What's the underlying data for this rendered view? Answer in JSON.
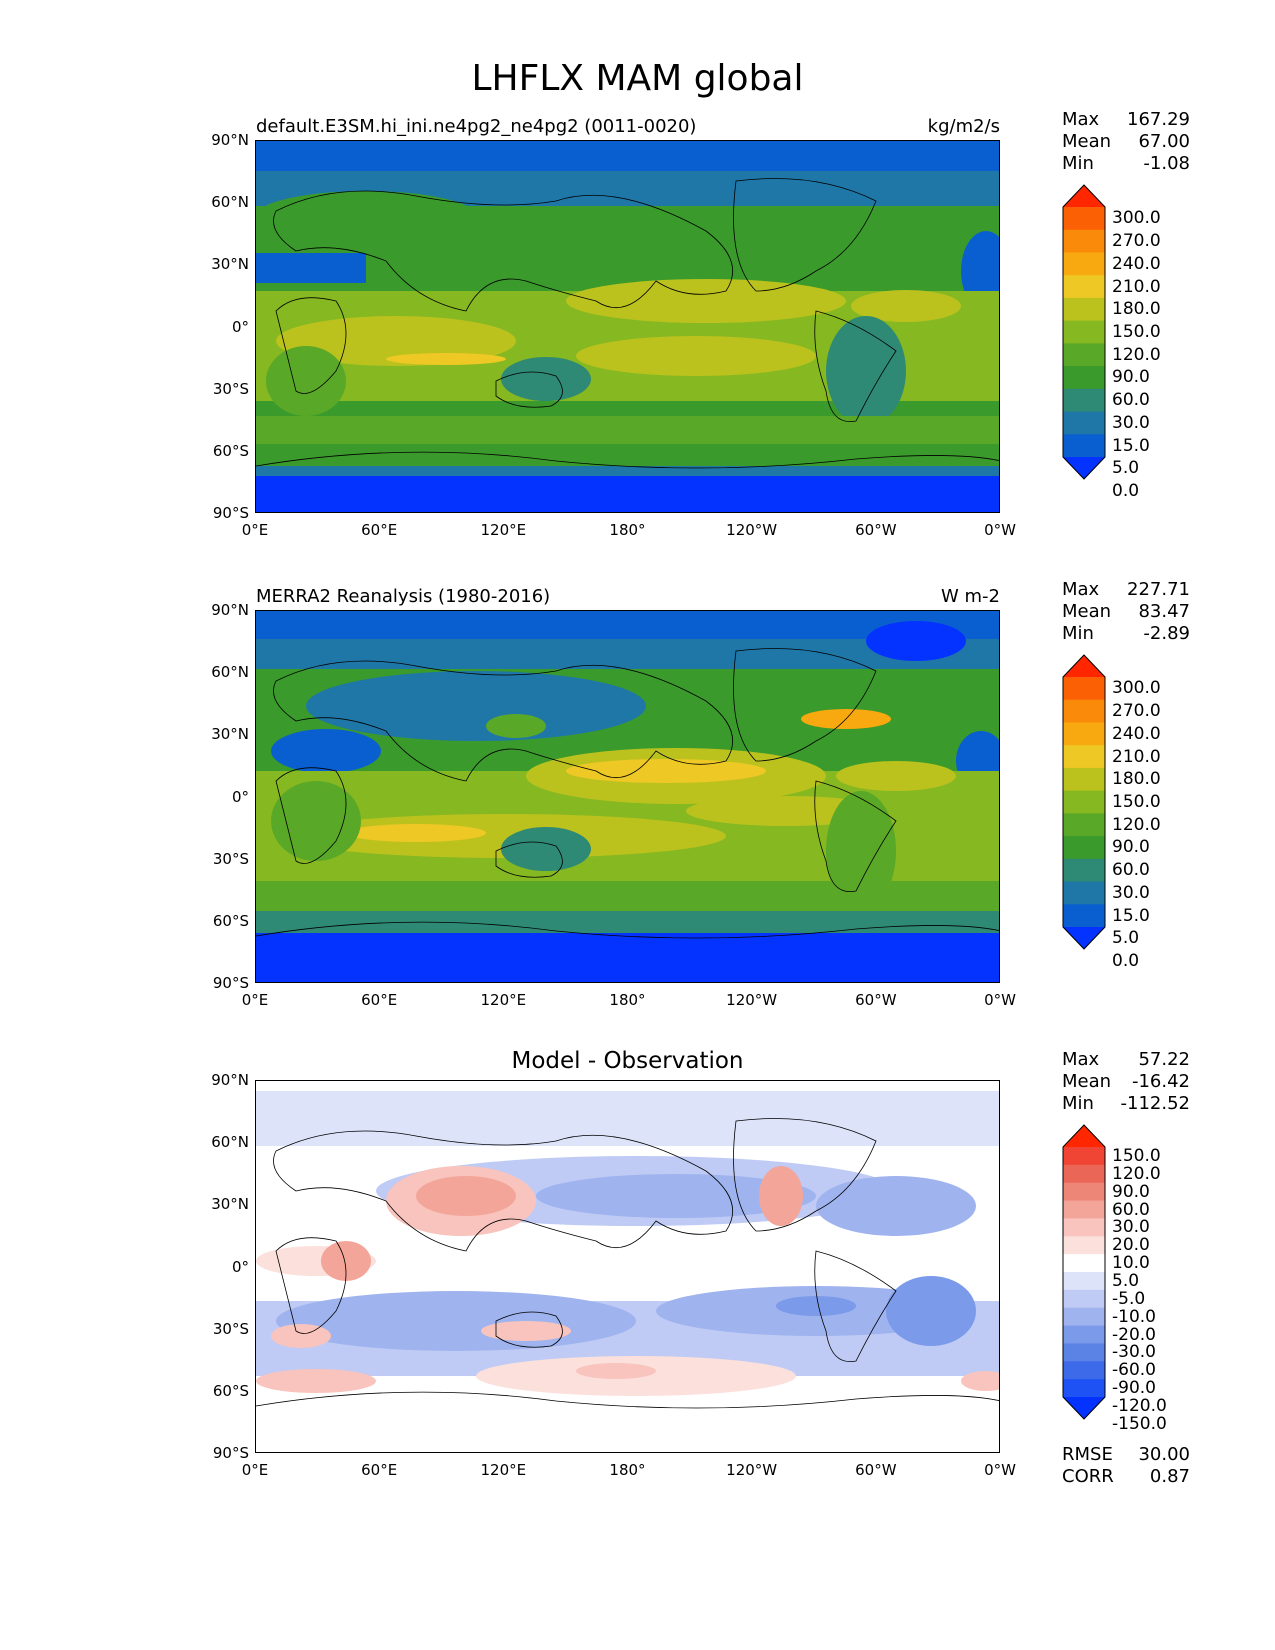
{
  "title": "LHFLX MAM global",
  "axes": {
    "y_ticks": [
      "90°N",
      "60°N",
      "30°N",
      "0°",
      "30°S",
      "60°S",
      "90°S"
    ],
    "x_ticks": [
      "0°E",
      "60°E",
      "120°E",
      "180°",
      "120°W",
      "60°W",
      "0°W"
    ]
  },
  "panels": [
    {
      "left_title": "default.E3SM.hi_ini.ne4pg2_ne4pg2 (0011-0020)",
      "right_title": "kg/m2/s",
      "center_title": "",
      "stats": {
        "max_label": "Max",
        "max": "167.29",
        "mean_label": "Mean",
        "mean": "67.00",
        "min_label": "Min",
        "min": "-1.08"
      },
      "colorbar": {
        "levels": [
          "0.0",
          "5.0",
          "15.0",
          "30.0",
          "60.0",
          "90.0",
          "120.0",
          "150.0",
          "180.0",
          "210.0",
          "240.0",
          "270.0",
          "300.0"
        ],
        "colors": [
          "#0433ff",
          "#0a5fd0",
          "#1f77a8",
          "#2e8a74",
          "#3a9a2b",
          "#5aa827",
          "#86b822",
          "#bbc21d",
          "#eec825",
          "#f7a90f",
          "#f98a0a",
          "#fb6005",
          "#ff2600"
        ]
      }
    },
    {
      "left_title": "MERRA2 Reanalysis (1980-2016)",
      "right_title": "W m-2",
      "center_title": "",
      "stats": {
        "max_label": "Max",
        "max": "227.71",
        "mean_label": "Mean",
        "mean": "83.47",
        "min_label": "Min",
        "min": "-2.89"
      },
      "colorbar": {
        "levels": [
          "0.0",
          "5.0",
          "15.0",
          "30.0",
          "60.0",
          "90.0",
          "120.0",
          "150.0",
          "180.0",
          "210.0",
          "240.0",
          "270.0",
          "300.0"
        ],
        "colors": [
          "#0433ff",
          "#0a5fd0",
          "#1f77a8",
          "#2e8a74",
          "#3a9a2b",
          "#5aa827",
          "#86b822",
          "#bbc21d",
          "#eec825",
          "#f7a90f",
          "#f98a0a",
          "#fb6005",
          "#ff2600"
        ]
      }
    },
    {
      "left_title": "",
      "right_title": "",
      "center_title": "Model - Observation",
      "stats": {
        "max_label": "Max",
        "max": "57.22",
        "mean_label": "Mean",
        "mean": "-16.42",
        "min_label": "Min",
        "min": "-112.52"
      },
      "colorbar": {
        "levels": [
          "-150.0",
          "-120.0",
          "-90.0",
          "-60.0",
          "-30.0",
          "-20.0",
          "-10.0",
          "-5.0",
          "5.0",
          "10.0",
          "20.0",
          "30.0",
          "60.0",
          "90.0",
          "120.0",
          "150.0"
        ],
        "colors": [
          "#0433ff",
          "#1e52f5",
          "#3d6ae8",
          "#5b83e6",
          "#7c9aea",
          "#9fb3ef",
          "#bfcbf4",
          "#dde4fa",
          "#ffffff",
          "#fbe0dc",
          "#f8c4bd",
          "#f3a59a",
          "#ee8677",
          "#ea6657",
          "#f04534",
          "#ff2600"
        ]
      },
      "extra": {
        "rmse_label": "RMSE",
        "rmse": "30.00",
        "corr_label": "CORR",
        "corr": "0.87"
      }
    }
  ]
}
